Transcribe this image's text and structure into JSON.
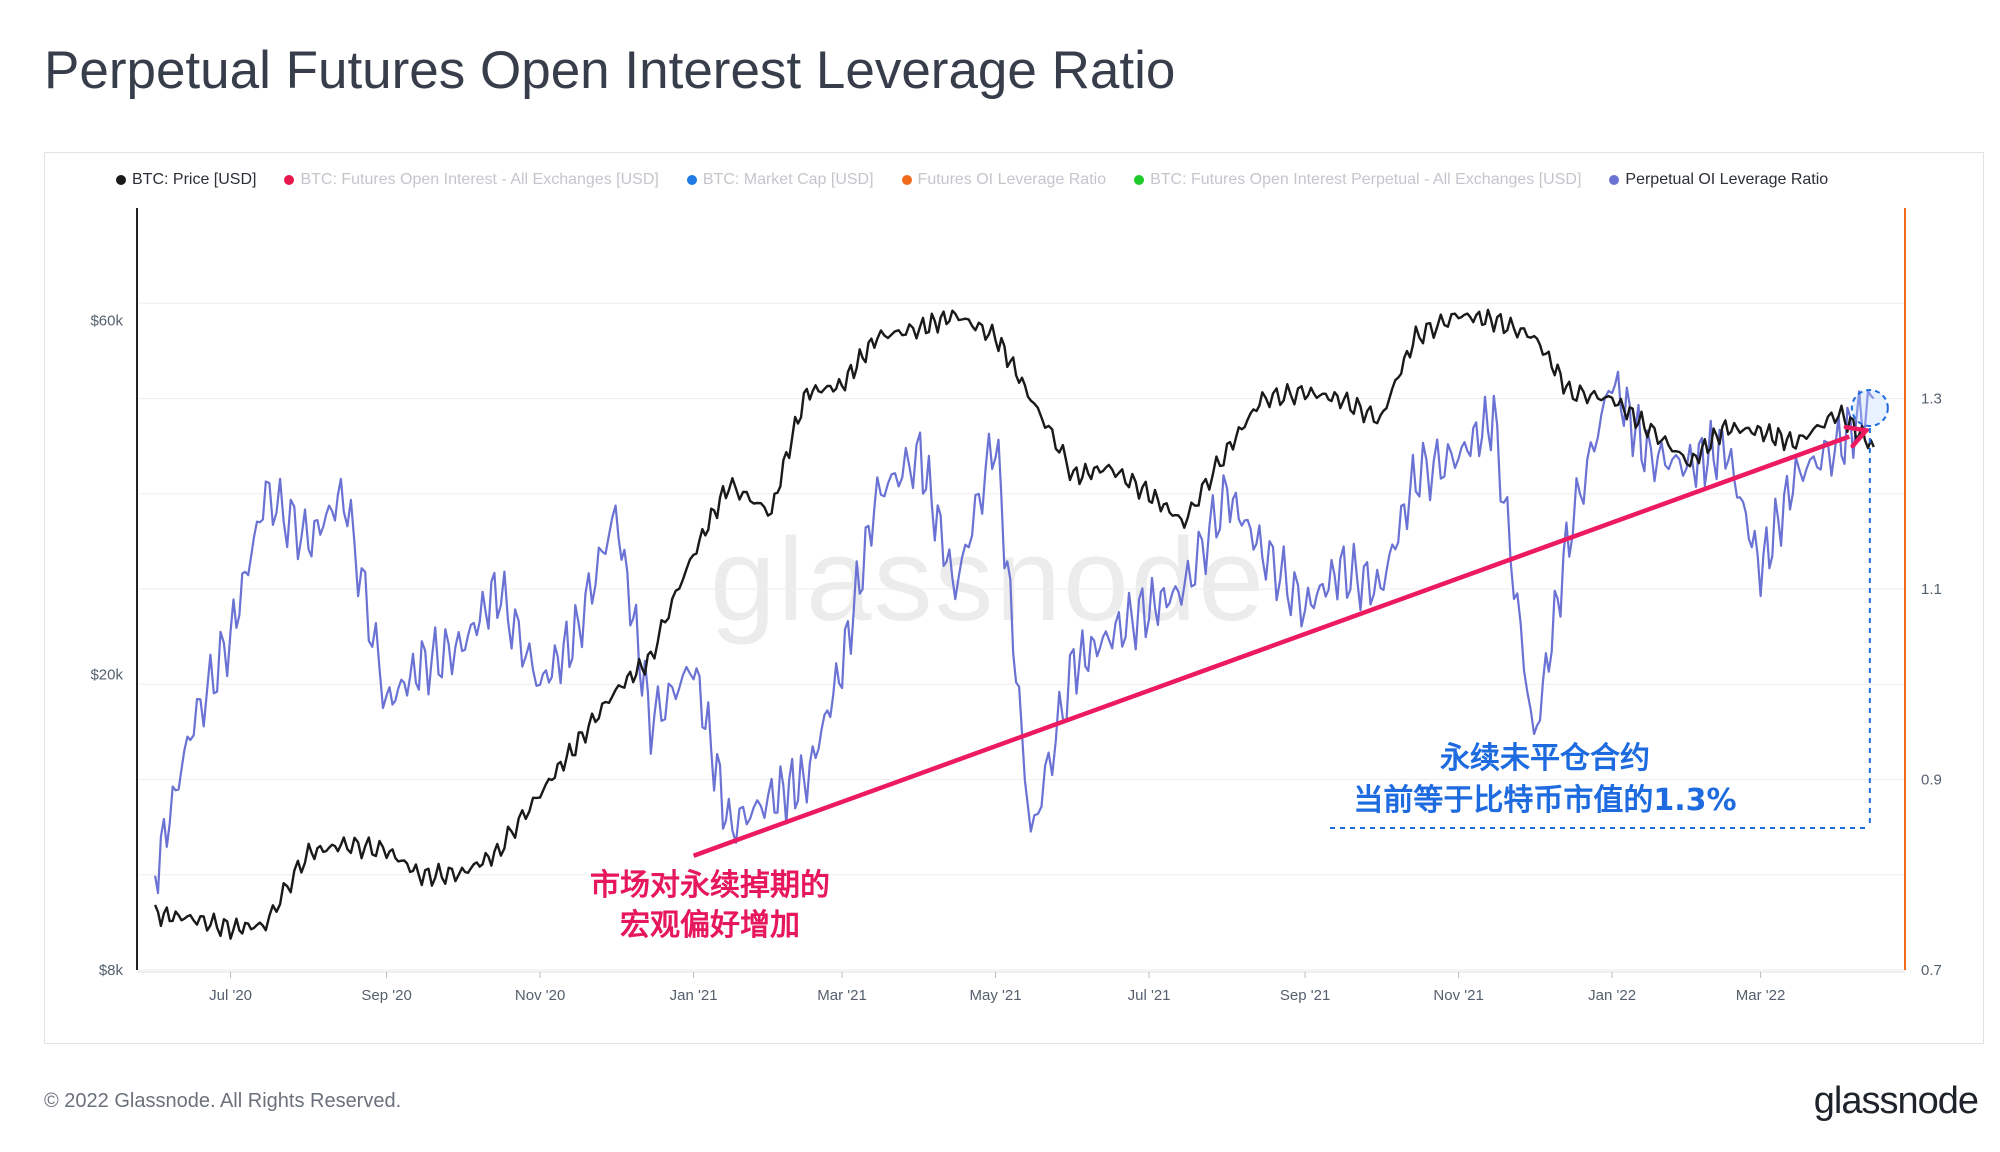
{
  "title": "Perpetual Futures Open Interest Leverage Ratio",
  "legend": [
    {
      "label": "BTC: Price [USD]",
      "color": "#1a1a1a",
      "active": true
    },
    {
      "label": "BTC: Futures Open Interest - All Exchanges [USD]",
      "color": "#e8174b",
      "active": false
    },
    {
      "label": "BTC: Market Cap [USD]",
      "color": "#1e7be8",
      "active": false
    },
    {
      "label": "Futures OI Leverage Ratio",
      "color": "#f26b1d",
      "active": false
    },
    {
      "label": "BTC: Futures Open Interest Perpetual - All Exchanges [USD]",
      "color": "#1ecb2a",
      "active": false
    },
    {
      "label": "Perpetual OI Leverage Ratio",
      "color": "#6a72d4",
      "active": true
    }
  ],
  "watermark": "glassnode",
  "annotations": {
    "red_line1": "市场对永续掉期的",
    "red_line2": "宏观偏好增加",
    "blue_line1": "永续未平仓合约",
    "blue_line2": "当前等于比特币市值的1.3%"
  },
  "footer": "© 2022 Glassnode. All Rights Reserved.",
  "brand": "glassnode",
  "chart_data": {
    "type": "line",
    "x_tick_labels": [
      "Jul '20",
      "Sep '20",
      "Nov '20",
      "Jan '21",
      "Mar '21",
      "May '21",
      "Jul '21",
      "Sep '21",
      "Nov '21",
      "Jan '22",
      "Mar '22"
    ],
    "x": [
      "2020-06-01",
      "2020-06-15",
      "2020-07-01",
      "2020-07-15",
      "2020-08-01",
      "2020-08-15",
      "2020-09-01",
      "2020-09-15",
      "2020-10-01",
      "2020-10-15",
      "2020-11-01",
      "2020-11-15",
      "2020-12-01",
      "2020-12-15",
      "2021-01-01",
      "2021-01-15",
      "2021-02-01",
      "2021-02-15",
      "2021-03-01",
      "2021-03-15",
      "2021-04-01",
      "2021-04-15",
      "2021-05-01",
      "2021-05-15",
      "2021-06-01",
      "2021-06-15",
      "2021-07-01",
      "2021-07-15",
      "2021-08-01",
      "2021-08-15",
      "2021-09-01",
      "2021-09-15",
      "2021-10-01",
      "2021-10-15",
      "2021-11-01",
      "2021-11-15",
      "2021-12-01",
      "2021-12-15",
      "2022-01-01",
      "2022-01-15",
      "2022-02-01",
      "2022-02-15",
      "2022-03-01",
      "2022-03-15",
      "2022-04-01",
      "2022-04-15"
    ],
    "series": [
      {
        "name": "BTC: Price [USD]",
        "axis": "left",
        "color": "#1a1a1a",
        "values": [
          9500,
          9400,
          9100,
          9200,
          11500,
          11800,
          11600,
          10700,
          10800,
          11500,
          13800,
          16000,
          19000,
          21000,
          29000,
          36000,
          33000,
          48000,
          49000,
          57000,
          58500,
          61000,
          57000,
          47000,
          37000,
          38000,
          35000,
          32000,
          40000,
          47000,
          48000,
          47000,
          44000,
          57000,
          61000,
          60000,
          57000,
          48000,
          47000,
          43000,
          38500,
          43000,
          42500,
          41000,
          45000,
          40500
        ]
      },
      {
        "name": "Perpetual OI Leverage Ratio",
        "axis": "right",
        "color": "#6a72d4",
        "values": [
          0.8,
          0.95,
          1.05,
          1.2,
          1.15,
          1.2,
          0.98,
          1.02,
          1.04,
          1.1,
          1.0,
          1.05,
          1.18,
          0.96,
          1.02,
          0.85,
          0.88,
          0.9,
          1.02,
          1.2,
          1.24,
          1.1,
          1.26,
          0.84,
          1.02,
          1.05,
          1.08,
          1.1,
          1.2,
          1.14,
          1.08,
          1.12,
          1.1,
          1.22,
          1.24,
          1.28,
          0.94,
          1.16,
          1.32,
          1.24,
          1.23,
          1.25,
          1.12,
          1.22,
          1.25,
          1.3
        ]
      }
    ],
    "y_left": {
      "scale": "log",
      "ticks": [
        "$8k",
        "$20k",
        "$60k"
      ],
      "range": [
        8000,
        85000
      ]
    },
    "y_right": {
      "ticks": [
        "0.7",
        "0.9",
        "1.1",
        "1.3"
      ],
      "range": [
        0.7,
        1.5
      ]
    },
    "trend_line": {
      "color": "#ed1a60",
      "from": [
        "2021-01-01",
        0.82
      ],
      "to": [
        "2022-04-10",
        1.26
      ]
    }
  }
}
